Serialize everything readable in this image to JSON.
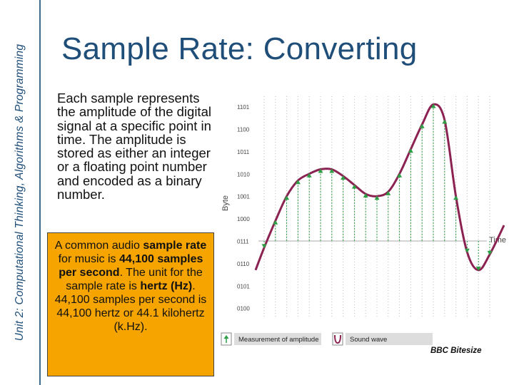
{
  "slide": {
    "sidebar_text": "Unit 2: Computational Thinking, Algorithms & Programming",
    "title": "Sample Rate: Converting",
    "paragraph": "Each sample represents the amplitude of the digital signal at a specific point in time. The amplitude is stored as either an integer or a floating point number and encoded as a binary number.",
    "note": {
      "t1": "A common audio ",
      "b1": "sample rate",
      "t2": " for music is ",
      "b2": "44,100 samples per second",
      "t3": ". The unit for the sample rate is ",
      "b3": "hertz (Hz)",
      "t4": ". 44,100 samples per second is 44,100 hertz or 44.1 kilohertz (k.Hz)."
    },
    "credit": "BBC Bitesize"
  },
  "chart_data": {
    "type": "line",
    "xlabel": "Time",
    "ylabel": "Byte",
    "y_tick_labels": [
      "1101",
      "1100",
      "1011",
      "1010",
      "1001",
      "1000",
      "0111",
      "0110",
      "0101",
      "0100"
    ],
    "legend": [
      "Measurement of amplitude",
      "Sound wave"
    ],
    "colors": {
      "wave": "#8b2252",
      "arrow": "#2e9e44",
      "grid": "#bcbcbc"
    },
    "samples": [
      -0.3,
      0.9,
      2.0,
      2.7,
      3.0,
      3.2,
      3.2,
      2.9,
      2.5,
      2.1,
      2.0,
      2.2,
      3.0,
      4.1,
      5.2,
      6.1,
      5.4,
      2.0,
      -0.5,
      -1.3,
      -0.6
    ]
  }
}
